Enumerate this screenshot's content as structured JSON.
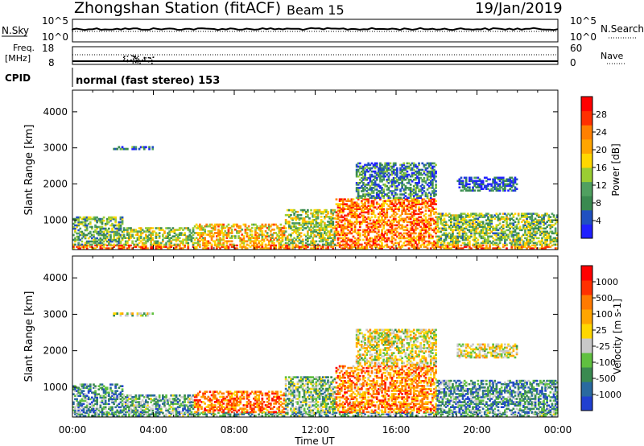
{
  "header": {
    "station": "Zhongshan Station (fitACF)",
    "beam": "Beam 15",
    "date": "19/Jan/2019"
  },
  "strip1": {
    "left_label": "N.Sky",
    "right_label": "N.Search",
    "left_ticks": [
      "10^5",
      "10^0"
    ],
    "right_ticks": [
      "10^5",
      "10^0"
    ]
  },
  "strip2": {
    "left_label_1": "Freq.",
    "left_label_2": "[MHz]",
    "right_label": "Nave",
    "left_ticks": [
      "18",
      "8"
    ],
    "right_ticks": [
      "60",
      "0"
    ]
  },
  "cpid": {
    "label": "CPID",
    "value": "normal (fast stereo) 153"
  },
  "chart_data": [
    {
      "type": "heatmap",
      "title": "",
      "xlabel": "Time UT",
      "ylabel": "Slant Range [km]",
      "x_ticks": [
        "00:00",
        "04:00",
        "08:00",
        "12:00",
        "16:00",
        "20:00",
        "00:00"
      ],
      "xlim": [
        0,
        24
      ],
      "ylim": [
        180,
        4600
      ],
      "y_ticks": [
        1000,
        2000,
        3000,
        4000
      ],
      "colorbar": {
        "label": "Power [dB]",
        "ticks": [
          "4",
          "8",
          "12",
          "16",
          "20",
          "24",
          "28"
        ],
        "colors": [
          "#2020ff",
          "#2050c0",
          "#3a8a50",
          "#50a060",
          "#9acd32",
          "#ffd700",
          "#ffa500",
          "#ff8000",
          "#ff3000",
          "#ff0000"
        ]
      },
      "bands": [
        {
          "t0": 0.0,
          "t1": 24.0,
          "r0": 200,
          "r1": 320,
          "level": 0.75
        },
        {
          "t0": 0.0,
          "t1": 2.5,
          "r0": 300,
          "r1": 1100,
          "level": 0.35
        },
        {
          "t0": 2.5,
          "t1": 6.0,
          "r0": 300,
          "r1": 800,
          "level": 0.45
        },
        {
          "t0": 6.0,
          "t1": 10.5,
          "r0": 300,
          "r1": 900,
          "level": 0.6
        },
        {
          "t0": 10.5,
          "t1": 13.0,
          "r0": 300,
          "r1": 1300,
          "level": 0.45
        },
        {
          "t0": 13.0,
          "t1": 18.0,
          "r0": 300,
          "r1": 1600,
          "level": 0.75
        },
        {
          "t0": 14.0,
          "t1": 18.0,
          "r0": 1600,
          "r1": 2600,
          "level": 0.25
        },
        {
          "t0": 18.0,
          "t1": 24.0,
          "r0": 300,
          "r1": 1200,
          "level": 0.4
        },
        {
          "t0": 19.0,
          "t1": 22.0,
          "r0": 1800,
          "r1": 2200,
          "level": 0.15
        },
        {
          "t0": 2.0,
          "t1": 4.0,
          "r0": 2950,
          "r1": 3050,
          "level": 0.2
        }
      ]
    },
    {
      "type": "heatmap",
      "title": "",
      "xlabel": "Time UT",
      "ylabel": "Slant Range [km]",
      "x_ticks": [
        "00:00",
        "04:00",
        "08:00",
        "12:00",
        "16:00",
        "20:00",
        "00:00"
      ],
      "xlim": [
        0,
        24
      ],
      "ylim": [
        180,
        4600
      ],
      "y_ticks": [
        1000,
        2000,
        3000,
        4000
      ],
      "colorbar": {
        "label": "Velocity [m s-1]",
        "ticks": [
          "1000",
          "500",
          "100",
          "25",
          "-25",
          "-100",
          "-500",
          "-1000"
        ],
        "colors": [
          "#2040d0",
          "#2a6aa0",
          "#3a8a50",
          "#60c040",
          "#c8c8c8",
          "#ffd700",
          "#ffa500",
          "#ff7a00",
          "#ff3000",
          "#ff0000"
        ]
      },
      "bands": [
        {
          "t0": 0.0,
          "t1": 24.0,
          "r0": 200,
          "r1": 320,
          "level": 0.3
        },
        {
          "t0": 0.0,
          "t1": 2.5,
          "r0": 300,
          "r1": 1100,
          "level": 0.25
        },
        {
          "t0": 2.5,
          "t1": 6.0,
          "r0": 300,
          "r1": 800,
          "level": 0.3
        },
        {
          "t0": 6.0,
          "t1": 10.5,
          "r0": 300,
          "r1": 900,
          "level": 0.75
        },
        {
          "t0": 10.5,
          "t1": 13.0,
          "r0": 300,
          "r1": 1300,
          "level": 0.35
        },
        {
          "t0": 13.0,
          "t1": 18.0,
          "r0": 300,
          "r1": 1600,
          "level": 0.7
        },
        {
          "t0": 14.0,
          "t1": 18.0,
          "r0": 1600,
          "r1": 2600,
          "level": 0.5
        },
        {
          "t0": 18.0,
          "t1": 24.0,
          "r0": 300,
          "r1": 1200,
          "level": 0.25
        },
        {
          "t0": 19.0,
          "t1": 22.0,
          "r0": 1800,
          "r1": 2200,
          "level": 0.5
        },
        {
          "t0": 2.0,
          "t1": 4.0,
          "r0": 2950,
          "r1": 3050,
          "level": 0.45
        }
      ]
    }
  ]
}
